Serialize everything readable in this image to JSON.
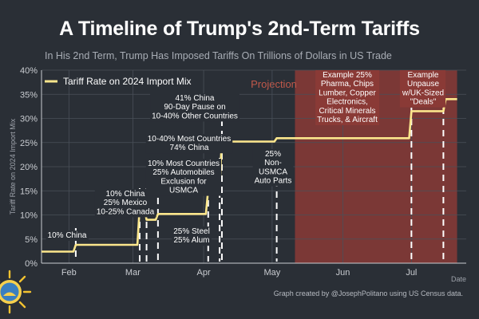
{
  "header": {
    "title": "A Timeline of Trump's 2nd-Term Tariffs",
    "subtitle": "In His 2nd Term, Trump Has Imposed Tariffs On Trillions of Dollars in US Trade"
  },
  "footer": {
    "credit": "Graph created by @JosephPolitano using US Census data."
  },
  "colors": {
    "background": "#2a2f36",
    "line": "#fbe68c",
    "projection_shade": "#8a3a36",
    "projection_label": "#c0584a",
    "grid": "#4a5059",
    "text": "#ffffff",
    "muted_text": "#a8adb5"
  },
  "chart_data": {
    "type": "line",
    "title": "A Timeline of Trump's 2nd-Term Tariffs",
    "subtitle": "In His 2nd Term, Trump Has Imposed Tariffs On Trillions of Dollars in US Trade",
    "xlabel": "Date",
    "ylabel": "Tariff Rate on 2024 Import Mix",
    "x_domain": [
      "2025-01-20",
      "2025-07-25"
    ],
    "ylim": [
      0,
      40
    ],
    "x_ticks": [
      {
        "date": "2025-02-01",
        "label": "Feb"
      },
      {
        "date": "2025-03-01",
        "label": "Mar"
      },
      {
        "date": "2025-04-01",
        "label": "Apr"
      },
      {
        "date": "2025-05-01",
        "label": "May"
      },
      {
        "date": "2025-06-01",
        "label": "Jun"
      },
      {
        "date": "2025-07-01",
        "label": "Jul"
      }
    ],
    "y_ticks": [
      {
        "value": 0,
        "label": "0%"
      },
      {
        "value": 5,
        "label": "5%"
      },
      {
        "value": 10,
        "label": "10%"
      },
      {
        "value": 15,
        "label": "15%"
      },
      {
        "value": 20,
        "label": "20%"
      },
      {
        "value": 25,
        "label": "25%"
      },
      {
        "value": 30,
        "label": "30%"
      },
      {
        "value": 35,
        "label": "35%"
      },
      {
        "value": 40,
        "label": "40%"
      }
    ],
    "grid": true,
    "legend_position": "top-left",
    "series": [
      {
        "name": "Tariff Rate on 2024 Import Mix",
        "points": [
          [
            "2025-01-20",
            2.4
          ],
          [
            "2025-02-03",
            2.4
          ],
          [
            "2025-02-04",
            3.8
          ],
          [
            "2025-03-03",
            3.8
          ],
          [
            "2025-03-04",
            11.7
          ],
          [
            "2025-03-05",
            12.0
          ],
          [
            "2025-03-06",
            11.5
          ],
          [
            "2025-03-07",
            9.0
          ],
          [
            "2025-03-11",
            9.0
          ],
          [
            "2025-03-12",
            10.2
          ],
          [
            "2025-04-02",
            10.2
          ],
          [
            "2025-04-03",
            15.3
          ],
          [
            "2025-04-08",
            15.3
          ],
          [
            "2025-04-09",
            26.3
          ],
          [
            "2025-04-10",
            25.2
          ],
          [
            "2025-05-02",
            25.2
          ],
          [
            "2025-05-03",
            25.9
          ],
          [
            "2025-06-30",
            25.9
          ],
          [
            "2025-07-01",
            31.5
          ],
          [
            "2025-07-15",
            31.5
          ],
          [
            "2025-07-16",
            34.0
          ],
          [
            "2025-07-21",
            34.0
          ]
        ]
      }
    ],
    "projection": {
      "start": "2025-05-11",
      "end": "2025-07-21",
      "label": "Projection"
    },
    "events": [
      {
        "date": "2025-02-04",
        "label_lines": [
          "10% China"
        ]
      },
      {
        "date": "2025-03-04",
        "label_lines": [
          "10% China",
          "25% Mexico",
          "10-25% Canada"
        ]
      },
      {
        "date": "2025-03-07",
        "label_lines": []
      },
      {
        "date": "2025-03-12",
        "label_lines": [
          "25% Steel",
          "25% Alum"
        ]
      },
      {
        "date": "2025-04-03",
        "label_lines": [
          "10% Most Countries",
          "25% Automobiles",
          "Exclusion for",
          "USMCA"
        ]
      },
      {
        "date": "2025-04-08",
        "label_lines": [
          "10-40% Most Countries",
          "74% China"
        ]
      },
      {
        "date": "2025-04-09",
        "label_lines": [
          "41% China",
          "90-Day Pause on",
          "10-40% Other Countries"
        ]
      },
      {
        "date": "2025-05-03",
        "label_lines": [
          "25%",
          "Non-",
          "USMCA",
          "Auto Parts"
        ]
      },
      {
        "date": "2025-07-01",
        "label_lines": [
          "Example 25%",
          "Pharma, Chips",
          "Lumber, Copper",
          "Electronics,",
          "Critical Minerals",
          "Trucks, & Aircraft"
        ]
      },
      {
        "date": "2025-07-15",
        "label_lines": [
          "Example",
          "Unpause",
          "w/UK-Sized",
          "\"Deals\""
        ]
      }
    ]
  }
}
